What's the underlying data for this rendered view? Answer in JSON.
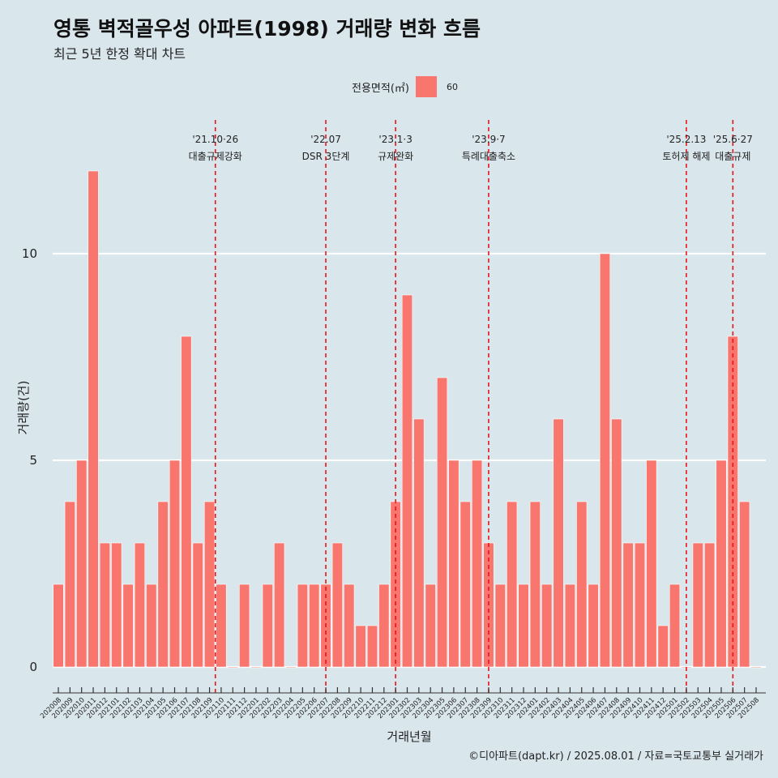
{
  "title": "영통 벽적골우성 아파트(1998) 거래량 변화 흐름",
  "subtitle": "최근 5년 한정 확대 차트",
  "legend": {
    "title": "전용면적(㎡)",
    "key_label": "60",
    "key_color": "#f8766d"
  },
  "footer": {
    "credit": "©디아파트(dapt.kr) / 2025.08.01 / 자료=국토교통부 실거래가"
  },
  "chart_data": {
    "type": "bar",
    "xlabel": "거래년월",
    "ylabel": "거래량(건)",
    "ylim": [
      0,
      12
    ],
    "yticks": [
      0,
      5,
      10
    ],
    "bar_color": "#f8766d",
    "grid": true,
    "legend_position": "top",
    "categories": [
      "202008",
      "202009",
      "202010",
      "202011",
      "202012",
      "202101",
      "202102",
      "202103",
      "202104",
      "202105",
      "202106",
      "202107",
      "202108",
      "202109",
      "202110",
      "202111",
      "202112",
      "202201",
      "202202",
      "202203",
      "202204",
      "202205",
      "202206",
      "202207",
      "202208",
      "202209",
      "202210",
      "202211",
      "202212",
      "202301",
      "202302",
      "202303",
      "202304",
      "202305",
      "202306",
      "202307",
      "202308",
      "202309",
      "202310",
      "202311",
      "202312",
      "202401",
      "202402",
      "202403",
      "202404",
      "202405",
      "202406",
      "202407",
      "202408",
      "202409",
      "202410",
      "202411",
      "202412",
      "202501",
      "202502",
      "202503",
      "202504",
      "202505",
      "202506",
      "202507",
      "202508"
    ],
    "values": [
      2,
      4,
      5,
      12,
      3,
      3,
      2,
      3,
      2,
      4,
      5,
      8,
      3,
      4,
      2,
      0,
      2,
      0,
      2,
      3,
      0,
      2,
      2,
      2,
      3,
      2,
      1,
      1,
      2,
      4,
      9,
      6,
      2,
      7,
      5,
      4,
      5,
      3,
      2,
      4,
      2,
      4,
      2,
      6,
      2,
      4,
      2,
      10,
      6,
      3,
      3,
      5,
      1,
      2,
      0,
      3,
      3,
      5,
      8,
      4,
      0
    ],
    "annotations": [
      {
        "position": 13.5,
        "line1": "'21.10·26",
        "line2": "대출규제강화"
      },
      {
        "position": 23,
        "line1": "'22.07",
        "line2": "DSR 3단계"
      },
      {
        "position": 29,
        "line1": "'23.1·3",
        "line2": "규제완화"
      },
      {
        "position": 37,
        "line1": "'23.9·7",
        "line2": "특례대출축소"
      },
      {
        "position": 54,
        "line1": "'25.2.13",
        "line2": "토허제 해제"
      },
      {
        "position": 58,
        "line1": "'25.6·27",
        "line2": "대출규제"
      }
    ]
  }
}
